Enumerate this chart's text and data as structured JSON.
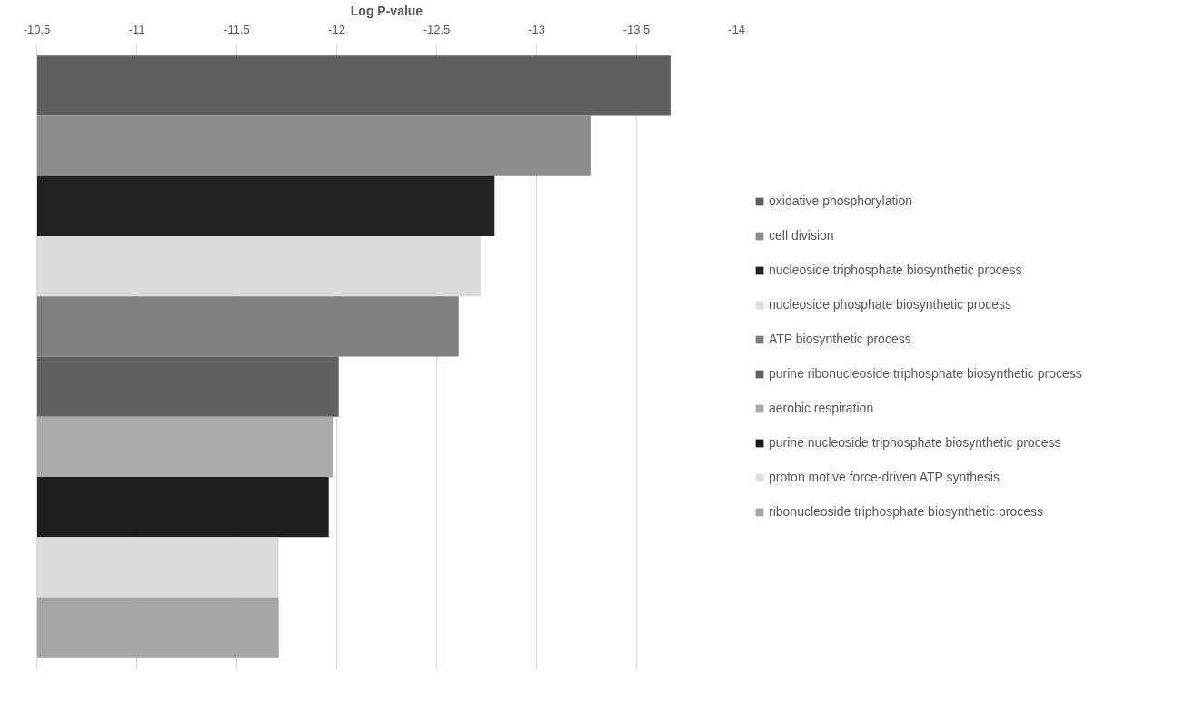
{
  "chart_data": {
    "type": "bar",
    "orientation": "horizontal",
    "xlabel": "Log P-value",
    "categories": [
      null
    ],
    "series": [
      {
        "name": "oxidative phosphorylation",
        "color": "#5f5f5f",
        "values": [
          -13.67
        ]
      },
      {
        "name": "cell division",
        "color": "#8c8c8c",
        "values": [
          -13.27
        ]
      },
      {
        "name": "nucleoside triphosphate biosynthetic process",
        "color": "#222222",
        "values": [
          -12.79
        ]
      },
      {
        "name": "nucleoside phosphate biosynthetic process",
        "color": "#dcdcdc",
        "values": [
          -12.72
        ]
      },
      {
        "name": "ATP biosynthetic process",
        "color": "#7f7f7f",
        "values": [
          -12.61
        ]
      },
      {
        "name": "purine ribonucleoside triphosphate biosynthetic process",
        "color": "#606060",
        "values": [
          -12.01
        ]
      },
      {
        "name": "aerobic respiration",
        "color": "#aaaaaa",
        "values": [
          -11.98
        ]
      },
      {
        "name": "purine nucleoside triphosphate biosynthetic process",
        "color": "#1e1e1e",
        "values": [
          -11.96
        ]
      },
      {
        "name": "proton motive force-driven ATP synthesis",
        "color": "#dcdcdc",
        "values": [
          -11.71
        ]
      },
      {
        "name": "ribonucleoside triphosphate biosynthetic process",
        "color": "#a6a6a6",
        "values": [
          -11.71
        ]
      }
    ],
    "xlim": [
      -10.5,
      -14
    ],
    "xticks": [
      -10.5,
      -11,
      -11.5,
      -12,
      -12.5,
      -13,
      -13.5,
      -14
    ],
    "grid": "x",
    "legend": "right",
    "tick_labels": "x"
  }
}
